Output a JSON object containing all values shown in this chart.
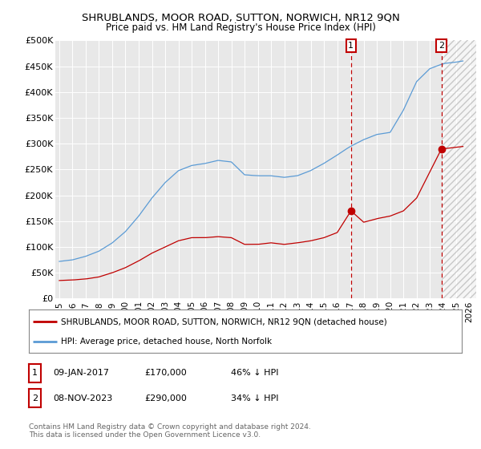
{
  "title": "SHRUBLANDS, MOOR ROAD, SUTTON, NORWICH, NR12 9QN",
  "subtitle": "Price paid vs. HM Land Registry's House Price Index (HPI)",
  "xlim": [
    1994.7,
    2026.5
  ],
  "ylim": [
    0,
    500000
  ],
  "ytick_labels": [
    "£0",
    "£50K",
    "£100K",
    "£150K",
    "£200K",
    "£250K",
    "£300K",
    "£350K",
    "£400K",
    "£450K",
    "£500K"
  ],
  "hpi_color": "#5b9bd5",
  "price_color": "#c00000",
  "sale1_date": 2017.04,
  "sale1_price": 170000,
  "sale2_date": 2023.87,
  "sale2_price": 290000,
  "legend_line1": "SHRUBLANDS, MOOR ROAD, SUTTON, NORWICH, NR12 9QN (detached house)",
  "legend_line2": "HPI: Average price, detached house, North Norfolk",
  "note1_date": "09-JAN-2017",
  "note1_price": "£170,000",
  "note1_pct": "46% ↓ HPI",
  "note2_date": "08-NOV-2023",
  "note2_price": "£290,000",
  "note2_pct": "34% ↓ HPI",
  "footer": "Contains HM Land Registry data © Crown copyright and database right 2024.\nThis data is licensed under the Open Government Licence v3.0.",
  "plot_bg_color": "#e8e8e8",
  "hpi_breakpoints_x": [
    1995.0,
    1996.0,
    1997.0,
    1998.0,
    1999.0,
    2000.0,
    2001.0,
    2002.0,
    2003.0,
    2004.0,
    2005.0,
    2006.0,
    2007.0,
    2008.0,
    2009.0,
    2010.0,
    2011.0,
    2012.0,
    2013.0,
    2014.0,
    2015.0,
    2016.0,
    2017.0,
    2018.0,
    2019.0,
    2020.0,
    2021.0,
    2022.0,
    2023.0,
    2024.0,
    2025.0,
    2025.5
  ],
  "hpi_breakpoints_y": [
    72000,
    75000,
    82000,
    92000,
    108000,
    130000,
    160000,
    195000,
    225000,
    248000,
    258000,
    262000,
    268000,
    265000,
    240000,
    238000,
    238000,
    235000,
    238000,
    248000,
    262000,
    278000,
    295000,
    308000,
    318000,
    322000,
    365000,
    420000,
    445000,
    455000,
    458000,
    460000
  ],
  "price_breakpoints_x": [
    1995.0,
    1996.0,
    1997.0,
    1998.0,
    1999.0,
    2000.0,
    2001.0,
    2002.0,
    2003.0,
    2004.0,
    2005.0,
    2006.0,
    2007.0,
    2008.0,
    2009.0,
    2010.0,
    2011.0,
    2012.0,
    2013.0,
    2014.0,
    2015.0,
    2016.0,
    2017.04,
    2018.0,
    2019.0,
    2020.0,
    2021.0,
    2022.0,
    2023.87,
    2025.5
  ],
  "price_breakpoints_y": [
    35000,
    36000,
    38000,
    42000,
    50000,
    60000,
    73000,
    88000,
    100000,
    112000,
    118000,
    118000,
    120000,
    118000,
    105000,
    105000,
    108000,
    105000,
    108000,
    112000,
    118000,
    128000,
    170000,
    148000,
    155000,
    160000,
    170000,
    195000,
    290000,
    295000
  ]
}
